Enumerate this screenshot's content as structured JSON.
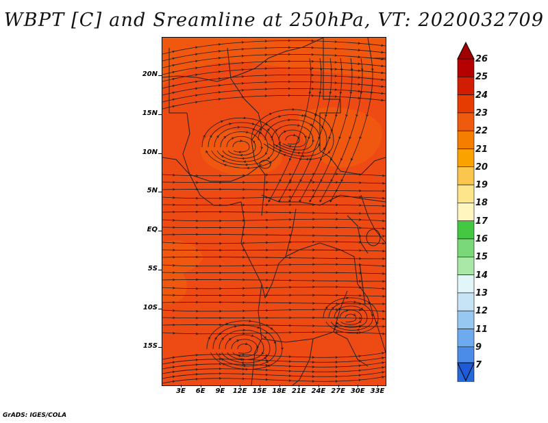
{
  "title": "WBPT [C] and Sreamline at 250hPa, VT: 2020032709",
  "credit": "GrADS: IGES/COLA",
  "map": {
    "variable": "WBPT",
    "units": "C",
    "level": "250hPa",
    "valid_time": "2020032709",
    "lat_labels": [
      "20N",
      "15N",
      "10N",
      "5N",
      "EQ",
      "5S",
      "10S",
      "15S"
    ],
    "lon_labels": [
      "3E",
      "6E",
      "9E",
      "12E",
      "15E",
      "18E",
      "21E",
      "24E",
      "27E",
      "30E",
      "33E"
    ],
    "field_range_C": [
      23,
      25
    ],
    "dominant_color": "#ee4a14",
    "warm_patch_color": "#f05a0e",
    "boundary_color": "#202020",
    "streamline_color": "#1a1a1a"
  },
  "colorbar": {
    "labels": [
      "26",
      "25",
      "24",
      "23",
      "22",
      "21",
      "20",
      "19",
      "18",
      "17",
      "16",
      "15",
      "14",
      "13",
      "12",
      "11",
      "9",
      "7"
    ],
    "colors": [
      "#b40000",
      "#d21e00",
      "#e63c00",
      "#f05a0e",
      "#f57d00",
      "#f9a200",
      "#fbc64e",
      "#fde58a",
      "#fff6bf",
      "#44c844",
      "#7ad87a",
      "#aae8a8",
      "#e2f6fa",
      "#c6e4f6",
      "#96c8f2",
      "#6eaaee",
      "#4a8ce8",
      "#2468dc"
    ],
    "top_arrow_color": "#a00000",
    "bottom_arrow_color": "#1e5ad8"
  }
}
